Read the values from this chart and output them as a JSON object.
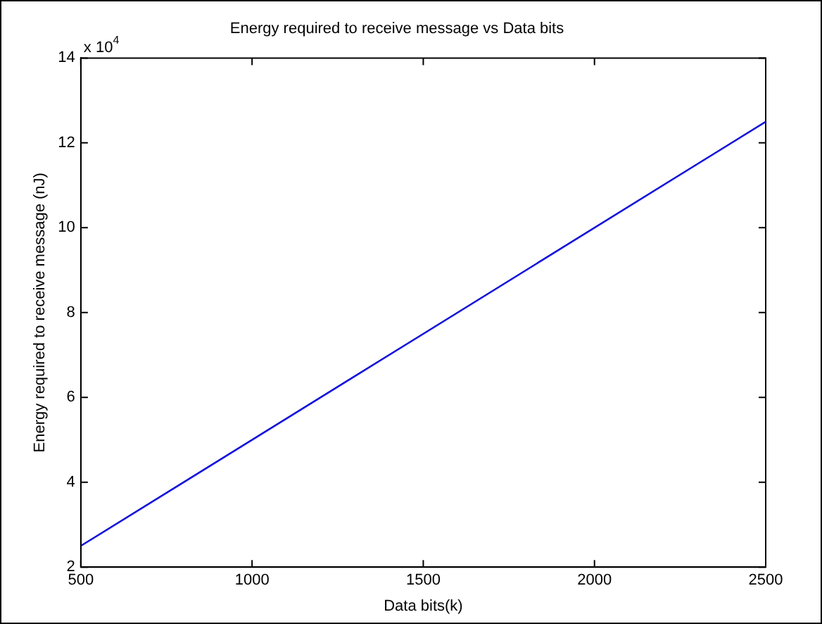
{
  "chart_data": {
    "type": "line",
    "title": "Energy required to receive message vs Data bits",
    "xlabel": "Data bits(k)",
    "ylabel": "Energy required to receive message (nJ)",
    "annotations": [
      "x 10$^{4}$"
    ],
    "x": [
      500,
      1500,
      2500
    ],
    "series": [
      {
        "color": "#0000ff",
        "values": [
          2.5,
          7.5,
          12.5
        ]
      }
    ],
    "xlim": [
      500,
      2500
    ],
    "xticks": [
      500,
      1000,
      1500,
      2000,
      2500
    ],
    "ylim": [
      2,
      14
    ],
    "yticks": [
      2,
      4,
      6,
      8,
      10,
      12,
      14
    ],
    "grid": false,
    "legend": false,
    "marker": "none",
    "line_style": "solid"
  }
}
